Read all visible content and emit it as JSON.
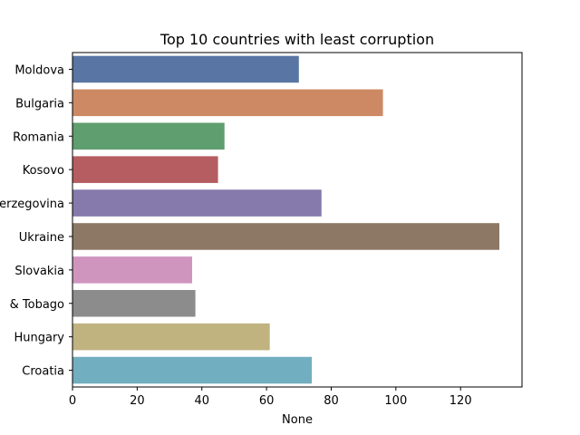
{
  "chart_data": {
    "type": "bar",
    "orientation": "horizontal",
    "title": "Top 10 countries with least corruption",
    "xlabel": "None",
    "ylabel": "",
    "categories": [
      "Moldova",
      "Bulgaria",
      "Romania",
      "Kosovo",
      "Bosnia and Herzegovina",
      "Ukraine",
      "Slovakia",
      "Trinidad & Tobago",
      "Hungary",
      "Croatia"
    ],
    "tick_labels": [
      "Moldova",
      "Bulgaria",
      "Romania",
      "Kosovo",
      "erzegovina",
      "Ukraine",
      "Slovakia",
      "& Tobago",
      "Hungary",
      "Croatia"
    ],
    "values": [
      70,
      96,
      47,
      45,
      77,
      132,
      37,
      38,
      61,
      74
    ],
    "colors": [
      "#5975a4",
      "#cc8963",
      "#5f9e6e",
      "#b55d60",
      "#857aab",
      "#8d7866",
      "#d095bf",
      "#8c8c8c",
      "#c1b37f",
      "#71aec0"
    ],
    "xlim": [
      0,
      139
    ],
    "xticks": [
      0,
      20,
      40,
      60,
      80,
      100,
      120
    ],
    "grid": false,
    "legend": "none"
  }
}
